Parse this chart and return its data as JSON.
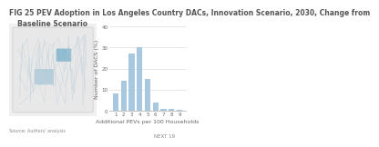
{
  "title_line1": "FIG 25 PEV Adoption in Los Angeles Country DACs, Innovation Scenario, 2030, Change from",
  "title_line2": "Baseline Scenario",
  "source": "Source: Authors' analysis",
  "page": "NEXT 19",
  "xlabel": "Additional PEVs per 100 Households",
  "ylabel": "Number of DACS (%)",
  "categories": [
    "1",
    "2",
    "3",
    "4",
    "5",
    "6",
    "7",
    "8",
    "9"
  ],
  "values": [
    8,
    14,
    27,
    30,
    15,
    4,
    1,
    1,
    0.5
  ],
  "bar_color": "#a8c8e0",
  "ylim": [
    0,
    40
  ],
  "yticks": [
    0,
    10,
    20,
    30,
    40
  ],
  "background_color": "#ffffff",
  "title_fontsize": 5.5,
  "axis_fontsize": 4.5,
  "tick_fontsize": 4
}
